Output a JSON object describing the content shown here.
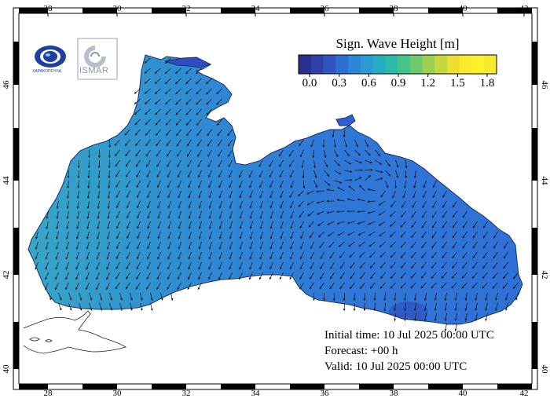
{
  "legend": {
    "title": "Sign. Wave Height [m]",
    "ticks": [
      "0.0",
      "0.3",
      "0.6",
      "0.9",
      "1.2",
      "1.5",
      "1.8"
    ],
    "colors": [
      "#2b2d8f",
      "#2f3fa8",
      "#2f55c0",
      "#2d6ed2",
      "#2c86d6",
      "#2a9bd0",
      "#27adc2",
      "#2bbba8",
      "#45c38c",
      "#6dca6e",
      "#9ccf52",
      "#c7d83e",
      "#ecdf2f",
      "#fbe92b",
      "#fdf22a",
      "#f7ea2c"
    ]
  },
  "info": {
    "initial_time": "Initial time: 10 Jul 2025 00:00 UTC",
    "forecast": "Forecast: +00 h",
    "valid": "Valid: 10 Jul 2025 00:00 UTC"
  },
  "axes": {
    "lon_labels": [
      "28",
      "30",
      "32",
      "34",
      "36",
      "38",
      "40",
      "42"
    ],
    "lat_labels": [
      "40",
      "42",
      "44",
      "46"
    ]
  },
  "logos": {
    "left_text": "ΧΑΡΑΚΟΠΟΥΛΑ",
    "right_text": "ISMAR"
  },
  "colors": {
    "sea_main": "#2f78d6",
    "sea_west": "#33a0c8",
    "sea_low": "#2f55c0",
    "arrow": "#111111"
  }
}
